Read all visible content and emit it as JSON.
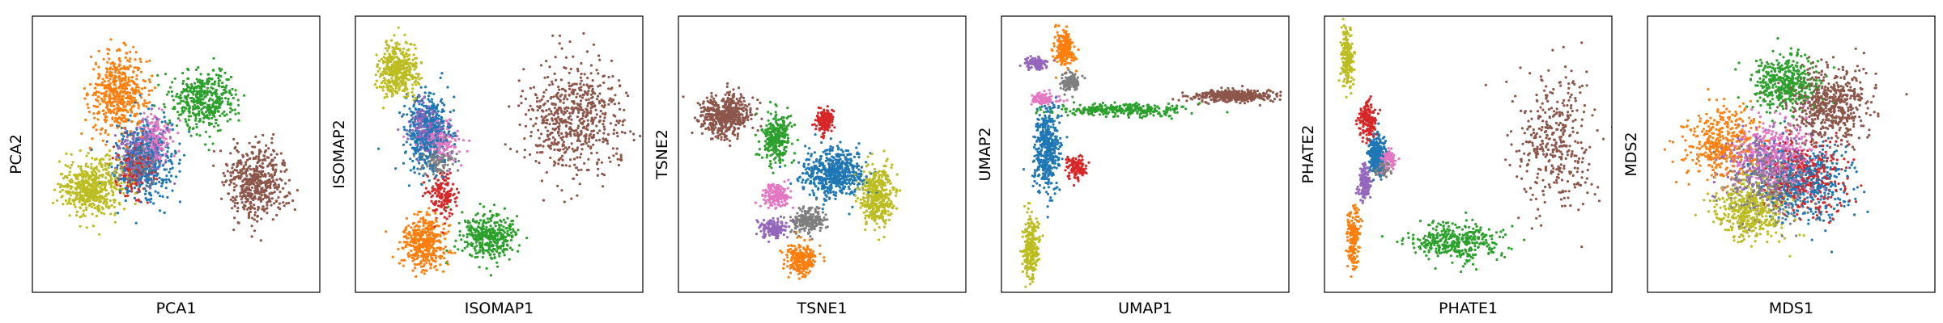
{
  "figure": {
    "palette": {
      "blue": "#1f77b4",
      "orange": "#ff7f0e",
      "green": "#2ca02c",
      "red": "#d62728",
      "purple": "#9467bd",
      "brown": "#8c564b",
      "pink": "#e377c2",
      "gray": "#7f7f7f",
      "olive": "#bcbd22"
    }
  },
  "chart_data": [
    {
      "type": "scatter",
      "title": "",
      "xlabel": "PCA1",
      "ylabel": "PCA2",
      "xlim": [
        0,
        10
      ],
      "ylim": [
        0,
        10
      ],
      "ticks": "none",
      "grid": false,
      "legend": "none",
      "clusters": [
        {
          "color": "orange",
          "center": [
            3.0,
            7.2
          ],
          "spread": [
            0.9,
            1.3
          ],
          "count": 500
        },
        {
          "color": "green",
          "center": [
            6.0,
            7.0
          ],
          "spread": [
            1.0,
            1.0
          ],
          "count": 420
        },
        {
          "color": "brown",
          "center": [
            7.8,
            4.0
          ],
          "spread": [
            1.0,
            1.2
          ],
          "count": 500
        },
        {
          "color": "blue",
          "center": [
            3.9,
            4.8
          ],
          "spread": [
            0.9,
            1.3
          ],
          "count": 480
        },
        {
          "color": "pink",
          "center": [
            4.3,
            5.6
          ],
          "spread": [
            0.5,
            0.8
          ],
          "count": 180
        },
        {
          "color": "purple",
          "center": [
            3.8,
            5.0
          ],
          "spread": [
            0.7,
            1.0
          ],
          "count": 200
        },
        {
          "color": "red",
          "center": [
            3.5,
            4.4
          ],
          "spread": [
            0.6,
            0.8
          ],
          "count": 160
        },
        {
          "color": "gray",
          "center": [
            3.7,
            4.6
          ],
          "spread": [
            0.6,
            0.7
          ],
          "count": 140
        },
        {
          "color": "olive",
          "center": [
            2.1,
            3.8
          ],
          "spread": [
            1.0,
            0.9
          ],
          "count": 520
        }
      ]
    },
    {
      "type": "scatter",
      "title": "",
      "xlabel": "ISOMAP1",
      "ylabel": "ISOMAP2",
      "xlim": [
        0,
        10
      ],
      "ylim": [
        0,
        10
      ],
      "ticks": "none",
      "grid": false,
      "legend": "none",
      "clusters": [
        {
          "color": "olive",
          "center": [
            1.5,
            8.0
          ],
          "spread": [
            0.6,
            0.9
          ],
          "count": 420
        },
        {
          "color": "blue",
          "center": [
            2.5,
            5.8
          ],
          "spread": [
            0.7,
            1.2
          ],
          "count": 480
        },
        {
          "color": "purple",
          "center": [
            2.4,
            6.0
          ],
          "spread": [
            0.5,
            0.8
          ],
          "count": 150
        },
        {
          "color": "pink",
          "center": [
            3.0,
            5.5
          ],
          "spread": [
            0.6,
            0.6
          ],
          "count": 150
        },
        {
          "color": "gray",
          "center": [
            2.9,
            4.8
          ],
          "spread": [
            0.5,
            0.6
          ],
          "count": 120
        },
        {
          "color": "red",
          "center": [
            3.0,
            3.5
          ],
          "spread": [
            0.5,
            0.8
          ],
          "count": 150
        },
        {
          "color": "orange",
          "center": [
            2.4,
            1.8
          ],
          "spread": [
            0.7,
            0.9
          ],
          "count": 420
        },
        {
          "color": "green",
          "center": [
            4.6,
            2.0
          ],
          "spread": [
            0.9,
            0.8
          ],
          "count": 380
        },
        {
          "color": "brown",
          "center": [
            7.6,
            6.2
          ],
          "spread": [
            1.6,
            1.8
          ],
          "count": 600
        }
      ]
    },
    {
      "type": "scatter",
      "title": "",
      "xlabel": "TSNE1",
      "ylabel": "TSNE2",
      "xlim": [
        0,
        10
      ],
      "ylim": [
        0,
        10
      ],
      "ticks": "none",
      "grid": false,
      "legend": "none",
      "clusters": [
        {
          "color": "brown",
          "center": [
            1.6,
            6.4
          ],
          "spread": [
            0.8,
            0.7
          ],
          "count": 520
        },
        {
          "color": "green",
          "center": [
            3.4,
            5.6
          ],
          "spread": [
            0.5,
            0.8
          ],
          "count": 300
        },
        {
          "color": "red",
          "center": [
            5.1,
            6.2
          ],
          "spread": [
            0.3,
            0.4
          ],
          "count": 160
        },
        {
          "color": "blue",
          "center": [
            5.4,
            4.3
          ],
          "spread": [
            1.0,
            0.8
          ],
          "count": 560
        },
        {
          "color": "olive",
          "center": [
            6.9,
            3.5
          ],
          "spread": [
            0.5,
            1.0
          ],
          "count": 420
        },
        {
          "color": "pink",
          "center": [
            3.4,
            3.5
          ],
          "spread": [
            0.4,
            0.4
          ],
          "count": 180
        },
        {
          "color": "gray",
          "center": [
            4.5,
            2.6
          ],
          "spread": [
            0.5,
            0.4
          ],
          "count": 220
        },
        {
          "color": "purple",
          "center": [
            3.3,
            2.3
          ],
          "spread": [
            0.4,
            0.3
          ],
          "count": 160
        },
        {
          "color": "orange",
          "center": [
            4.3,
            1.2
          ],
          "spread": [
            0.5,
            0.5
          ],
          "count": 260
        }
      ]
    },
    {
      "type": "scatter",
      "title": "",
      "xlabel": "UMAP1",
      "ylabel": "UMAP2",
      "xlim": [
        0,
        10
      ],
      "ylim": [
        0,
        10
      ],
      "ticks": "none",
      "grid": false,
      "legend": "none",
      "clusters": [
        {
          "color": "orange",
          "center": [
            2.2,
            8.8
          ],
          "spread": [
            0.3,
            0.6
          ],
          "count": 220
        },
        {
          "color": "purple",
          "center": [
            1.2,
            8.3
          ],
          "spread": [
            0.4,
            0.2
          ],
          "count": 100
        },
        {
          "color": "pink",
          "center": [
            1.5,
            7.0
          ],
          "spread": [
            0.4,
            0.2
          ],
          "count": 100
        },
        {
          "color": "gray",
          "center": [
            2.4,
            7.6
          ],
          "spread": [
            0.3,
            0.3
          ],
          "count": 120
        },
        {
          "color": "blue",
          "center": [
            1.6,
            5.2
          ],
          "spread": [
            0.4,
            1.4
          ],
          "count": 460
        },
        {
          "color": "green",
          "center": [
            4.2,
            6.6
          ],
          "spread": [
            2.0,
            0.2
          ],
          "count": 300
        },
        {
          "color": "brown",
          "center": [
            8.0,
            7.1
          ],
          "spread": [
            1.4,
            0.2
          ],
          "count": 380
        },
        {
          "color": "red",
          "center": [
            2.6,
            4.5
          ],
          "spread": [
            0.3,
            0.4
          ],
          "count": 120
        },
        {
          "color": "olive",
          "center": [
            1.0,
            1.6
          ],
          "spread": [
            0.25,
            1.0
          ],
          "count": 280
        }
      ]
    },
    {
      "type": "scatter",
      "title": "",
      "xlabel": "PHATE1",
      "ylabel": "PHATE2",
      "xlim": [
        0,
        10
      ],
      "ylim": [
        0,
        10
      ],
      "ticks": "none",
      "grid": false,
      "legend": "none",
      "clusters": [
        {
          "color": "olive",
          "center": [
            0.8,
            8.5
          ],
          "spread": [
            0.2,
            1.0
          ],
          "count": 200
        },
        {
          "color": "red",
          "center": [
            1.5,
            6.2
          ],
          "spread": [
            0.3,
            0.7
          ],
          "count": 160
        },
        {
          "color": "blue",
          "center": [
            1.8,
            5.0
          ],
          "spread": [
            0.3,
            0.6
          ],
          "count": 260
        },
        {
          "color": "purple",
          "center": [
            1.4,
            4.0
          ],
          "spread": [
            0.2,
            0.6
          ],
          "count": 140
        },
        {
          "color": "pink",
          "center": [
            2.2,
            4.8
          ],
          "spread": [
            0.3,
            0.3
          ],
          "count": 100
        },
        {
          "color": "gray",
          "center": [
            2.0,
            4.5
          ],
          "spread": [
            0.2,
            0.3
          ],
          "count": 80
        },
        {
          "color": "orange",
          "center": [
            1.0,
            2.0
          ],
          "spread": [
            0.2,
            1.0
          ],
          "count": 180
        },
        {
          "color": "green",
          "center": [
            4.6,
            1.8
          ],
          "spread": [
            1.4,
            0.6
          ],
          "count": 360
        },
        {
          "color": "brown",
          "center": [
            8.0,
            5.5
          ],
          "spread": [
            1.2,
            2.2
          ],
          "count": 380
        }
      ]
    },
    {
      "type": "scatter",
      "title": "",
      "xlabel": "MDS1",
      "ylabel": "MDS2",
      "xlim": [
        0,
        10
      ],
      "ylim": [
        0,
        10
      ],
      "ticks": "none",
      "grid": false,
      "legend": "none",
      "clusters": [
        {
          "color": "brown",
          "center": [
            6.3,
            6.8
          ],
          "spread": [
            1.3,
            1.2
          ],
          "count": 560
        },
        {
          "color": "green",
          "center": [
            4.8,
            7.6
          ],
          "spread": [
            1.0,
            0.9
          ],
          "count": 420
        },
        {
          "color": "orange",
          "center": [
            2.6,
            5.4
          ],
          "spread": [
            1.2,
            1.2
          ],
          "count": 380
        },
        {
          "color": "pink",
          "center": [
            4.5,
            5.0
          ],
          "spread": [
            1.3,
            1.2
          ],
          "count": 320
        },
        {
          "color": "red",
          "center": [
            5.5,
            4.2
          ],
          "spread": [
            1.3,
            1.3
          ],
          "count": 320
        },
        {
          "color": "purple",
          "center": [
            4.0,
            4.5
          ],
          "spread": [
            1.2,
            1.2
          ],
          "count": 300
        },
        {
          "color": "gray",
          "center": [
            4.3,
            4.0
          ],
          "spread": [
            1.3,
            1.3
          ],
          "count": 300
        },
        {
          "color": "blue",
          "center": [
            5.5,
            4.0
          ],
          "spread": [
            1.4,
            1.3
          ],
          "count": 420
        },
        {
          "color": "olive",
          "center": [
            3.6,
            3.0
          ],
          "spread": [
            1.1,
            1.0
          ],
          "count": 460
        }
      ]
    }
  ]
}
